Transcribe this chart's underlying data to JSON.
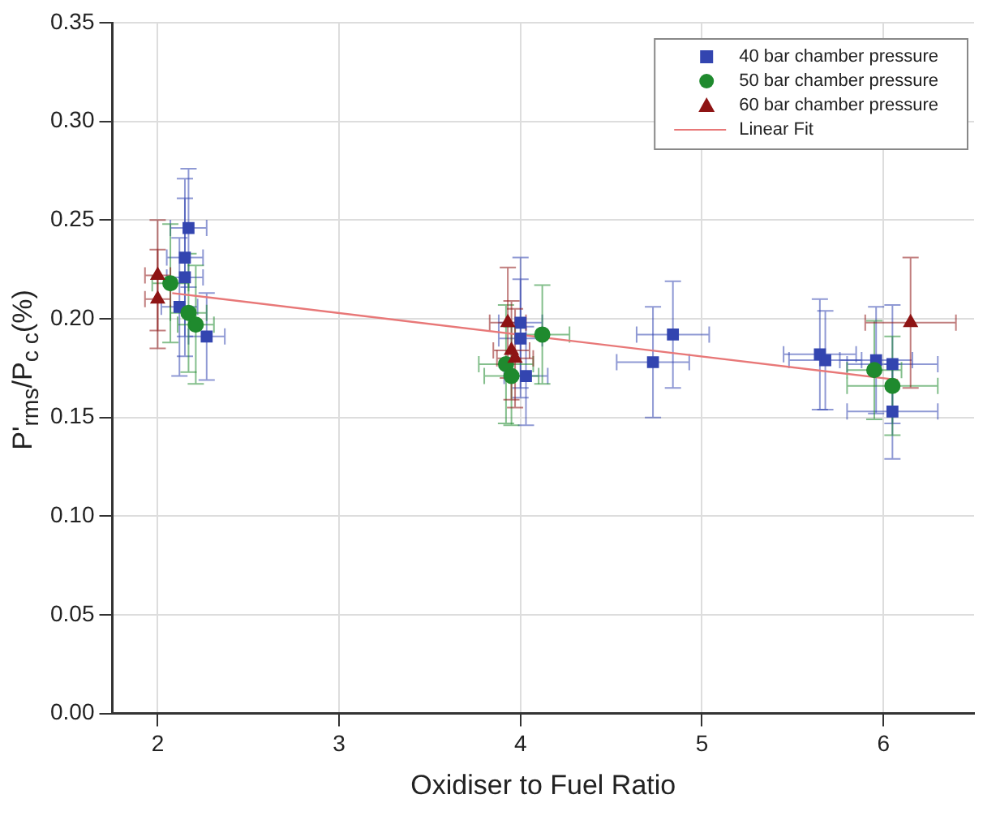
{
  "chart_data": {
    "type": "scatter",
    "xlabel": "Oxidiser to Fuel Ratio",
    "ylabel": "P'$_{rms}$/P$_{c c}$(%)",
    "xlim": [
      1.75,
      6.5
    ],
    "xticks": [
      2,
      3,
      4,
      5,
      6
    ],
    "ylim": [
      0,
      0.35
    ],
    "yticks": [
      {
        "value": 0,
        "label": "0.00"
      },
      {
        "value": 0.05,
        "label": "0.05"
      },
      {
        "value": 0.1,
        "label": "0.10"
      },
      {
        "value": 0.15,
        "label": "0.15"
      },
      {
        "value": 0.2,
        "label": "0.20"
      },
      {
        "value": 0.25,
        "label": "0.25"
      },
      {
        "value": 0.3,
        "label": "0.30"
      },
      {
        "value": 0.35,
        "label": "0.35"
      }
    ],
    "grid": true,
    "legend": "top right",
    "series": [
      {
        "name": "40 bar chamber pressure",
        "marker": "square",
        "color": "#3345b0",
        "x": [
          2.17,
          2.15,
          2.15,
          2.12,
          2.27,
          4.0,
          4.0,
          4.03,
          4.73,
          4.84,
          5.65,
          5.68,
          5.96,
          6.05,
          6.05
        ],
        "values": [
          0.246,
          0.231,
          0.221,
          0.206,
          0.191,
          0.198,
          0.19,
          0.171,
          0.178,
          0.192,
          0.182,
          0.179,
          0.179,
          0.177,
          0.153
        ],
        "errors": [
          0.03,
          0.04,
          0.04,
          0.035,
          0.022,
          0.033,
          0.03,
          0.025,
          0.028,
          0.027,
          0.028,
          0.025,
          0.027,
          0.03,
          0.024
        ],
        "xerrors": [
          0.1,
          0.1,
          0.1,
          0.1,
          0.1,
          0.12,
          0.12,
          0.12,
          0.2,
          0.2,
          0.2,
          0.2,
          0.2,
          0.25,
          0.25
        ]
      },
      {
        "name": "50 bar chamber pressure",
        "marker": "circle",
        "color": "#1f8a2e",
        "x": [
          2.07,
          2.17,
          2.21,
          4.12,
          3.92,
          3.95,
          5.95,
          6.05
        ],
        "values": [
          0.218,
          0.203,
          0.197,
          0.192,
          0.177,
          0.171,
          0.174,
          0.166
        ],
        "errors": [
          0.03,
          0.03,
          0.03,
          0.025,
          0.03,
          0.025,
          0.025,
          0.025
        ],
        "xerrors": [
          0.1,
          0.1,
          0.1,
          0.15,
          0.15,
          0.15,
          0.15,
          0.25
        ]
      },
      {
        "name": "60 bar chamber pressure",
        "marker": "triangle",
        "color": "#8e1414",
        "x": [
          2.0,
          2.0,
          3.93,
          3.95,
          3.97,
          6.15
        ],
        "values": [
          0.222,
          0.21,
          0.198,
          0.184,
          0.18,
          0.198
        ],
        "errors": [
          0.028,
          0.025,
          0.028,
          0.025,
          0.025,
          0.033
        ],
        "xerrors": [
          0.07,
          0.07,
          0.1,
          0.1,
          0.1,
          0.25
        ]
      },
      {
        "name": "Linear Fit",
        "type": "line",
        "marker": "none",
        "color": "#e87878",
        "x": [
          2.08,
          6.08
        ],
        "values": [
          0.213,
          0.169
        ]
      }
    ]
  }
}
